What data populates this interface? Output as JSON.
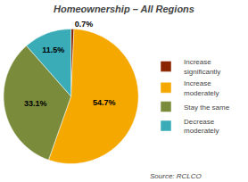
{
  "chart_data": {
    "type": "pie",
    "title": "Homeownership – All Regions",
    "categories": [
      "Increase\nsignificantly",
      "Increase\nmoderately",
      "Stay the same",
      "Decrease\nmoderately"
    ],
    "values": [
      0.7,
      54.7,
      33.1,
      11.5
    ],
    "value_labels": [
      "0.7%",
      "54.7%",
      "33.1%",
      "11.5%"
    ],
    "colors": [
      "#8B2500",
      "#F5A800",
      "#7A8C3B",
      "#3AACB8"
    ],
    "data_labels": true,
    "legend": "right",
    "annotations": [
      "Source: RCLCO"
    ]
  }
}
